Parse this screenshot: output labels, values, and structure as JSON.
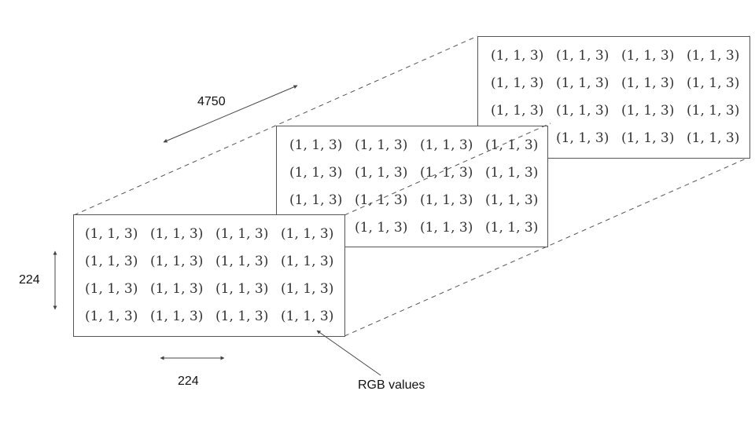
{
  "cell_value": "(1, 1, 3)",
  "labels": {
    "depth": "4750",
    "height": "224",
    "width": "224",
    "rgb": "RGB values"
  },
  "grid": {
    "rows": 4,
    "cols": 4
  },
  "colors": {
    "frame": "#555555",
    "arrow": "#444444",
    "dash": "#555555",
    "text": "#333333"
  }
}
